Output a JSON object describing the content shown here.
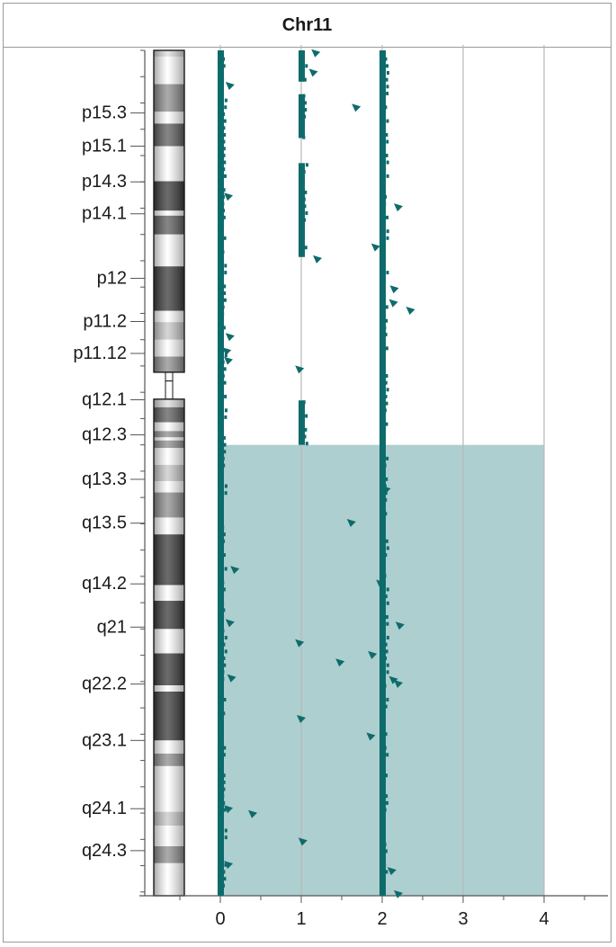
{
  "chart_data": {
    "type": "scatter",
    "title": "Chr11",
    "xlabel": "",
    "ylabel": "",
    "xlim": [
      -0.8,
      4.8
    ],
    "x_ticks": [
      "0",
      "1",
      "2",
      "3",
      "4"
    ],
    "grid": true,
    "legend": "none",
    "chromosome_unit": "Mb",
    "ylim_mb": [
      0,
      135
    ],
    "band_labels": [
      {
        "name": "p15.3",
        "mb": 10.0
      },
      {
        "name": "p15.1",
        "mb": 15.3
      },
      {
        "name": "p14.3",
        "mb": 21.0
      },
      {
        "name": "p14.1",
        "mb": 26.1
      },
      {
        "name": "p12",
        "mb": 36.4
      },
      {
        "name": "p11.2",
        "mb": 43.3
      },
      {
        "name": "p11.12",
        "mb": 48.4
      },
      {
        "name": "q12.1",
        "mb": 55.8
      },
      {
        "name": "q12.3",
        "mb": 61.4
      },
      {
        "name": "q13.3",
        "mb": 68.5
      },
      {
        "name": "q13.5",
        "mb": 75.5
      },
      {
        "name": "q14.2",
        "mb": 85.2
      },
      {
        "name": "q21",
        "mb": 92.1
      },
      {
        "name": "q22.2",
        "mb": 101.2
      },
      {
        "name": "q23.1",
        "mb": 110.2
      },
      {
        "name": "q24.1",
        "mb": 121.1
      },
      {
        "name": "q24.3",
        "mb": 127.8
      }
    ],
    "ideogram_bands": [
      {
        "start": 0.0,
        "end": 1.0,
        "stain": "gvar"
      },
      {
        "start": 1.0,
        "end": 5.4,
        "stain": "gneg"
      },
      {
        "start": 5.4,
        "end": 9.8,
        "stain": "gpos50"
      },
      {
        "start": 9.8,
        "end": 11.7,
        "stain": "gneg"
      },
      {
        "start": 11.7,
        "end": 15.3,
        "stain": "gpos75"
      },
      {
        "start": 15.3,
        "end": 20.9,
        "stain": "gneg"
      },
      {
        "start": 20.9,
        "end": 25.6,
        "stain": "gpos100"
      },
      {
        "start": 25.6,
        "end": 26.4,
        "stain": "gneg"
      },
      {
        "start": 26.4,
        "end": 29.4,
        "stain": "gpos75"
      },
      {
        "start": 29.4,
        "end": 34.5,
        "stain": "gneg"
      },
      {
        "start": 34.5,
        "end": 41.6,
        "stain": "gpos100"
      },
      {
        "start": 41.6,
        "end": 43.4,
        "stain": "gneg"
      },
      {
        "start": 43.4,
        "end": 46.2,
        "stain": "gpos25"
      },
      {
        "start": 46.2,
        "end": 48.9,
        "stain": "gneg"
      },
      {
        "start": 48.9,
        "end": 51.4,
        "stain": "gpos50"
      },
      {
        "start": 51.4,
        "end": 52.8,
        "stain": "acen"
      },
      {
        "start": 52.8,
        "end": 55.7,
        "stain": "stalk"
      },
      {
        "start": 55.7,
        "end": 57.0,
        "stain": "gvar"
      },
      {
        "start": 57.0,
        "end": 59.4,
        "stain": "gpos75"
      },
      {
        "start": 59.4,
        "end": 60.8,
        "stain": "gneg"
      },
      {
        "start": 60.8,
        "end": 61.8,
        "stain": "gpos50"
      },
      {
        "start": 61.8,
        "end": 62.3,
        "stain": "gneg"
      },
      {
        "start": 62.3,
        "end": 63.5,
        "stain": "gpos50"
      },
      {
        "start": 63.5,
        "end": 66.2,
        "stain": "gneg"
      },
      {
        "start": 66.2,
        "end": 68.8,
        "stain": "gpos25"
      },
      {
        "start": 68.8,
        "end": 70.6,
        "stain": "gneg"
      },
      {
        "start": 70.6,
        "end": 74.6,
        "stain": "gpos50"
      },
      {
        "start": 74.6,
        "end": 77.3,
        "stain": "gneg"
      },
      {
        "start": 77.3,
        "end": 85.4,
        "stain": "gpos100"
      },
      {
        "start": 85.4,
        "end": 87.9,
        "stain": "gneg"
      },
      {
        "start": 87.9,
        "end": 92.4,
        "stain": "gpos100"
      },
      {
        "start": 92.4,
        "end": 96.3,
        "stain": "gneg"
      },
      {
        "start": 96.3,
        "end": 101.4,
        "stain": "gpos100"
      },
      {
        "start": 101.4,
        "end": 102.4,
        "stain": "gneg"
      },
      {
        "start": 102.4,
        "end": 110.2,
        "stain": "gpos100"
      },
      {
        "start": 110.2,
        "end": 112.3,
        "stain": "gneg"
      },
      {
        "start": 112.3,
        "end": 114.3,
        "stain": "gpos50"
      },
      {
        "start": 114.3,
        "end": 121.6,
        "stain": "gneg"
      },
      {
        "start": 121.6,
        "end": 123.8,
        "stain": "gpos25"
      },
      {
        "start": 123.8,
        "end": 127.1,
        "stain": "gneg"
      },
      {
        "start": 127.1,
        "end": 129.8,
        "stain": "gpos50"
      },
      {
        "start": 129.8,
        "end": 135.0,
        "stain": "gneg"
      }
    ],
    "highlight_region": {
      "start_mb": 63.0,
      "end_mb": 135.0,
      "x_from": 0,
      "x_to": 4,
      "color": "#aecfcf"
    },
    "series": [
      {
        "values_description": "copy number per marker",
        "color": "#0e6b6b",
        "tracks": [
          {
            "x": 0,
            "start_mb": 0,
            "end_mb": 135
          },
          {
            "x": 1,
            "start_mb": 0,
            "end_mb": 14,
            "gaps": [
              [
                5,
                7
              ]
            ]
          },
          {
            "x": 1,
            "start_mb": 18,
            "end_mb": 33
          },
          {
            "x": 1,
            "start_mb": 55.9,
            "end_mb": 63.0
          },
          {
            "x": 2,
            "start_mb": 0,
            "end_mb": 135
          }
        ],
        "outliers": [
          {
            "x": 1.18,
            "mb": 0.4
          },
          {
            "x": 1.15,
            "mb": 3.5
          },
          {
            "x": 0.12,
            "mb": 5.6
          },
          {
            "x": 1.68,
            "mb": 9.1
          },
          {
            "x": 0.1,
            "mb": 23.3
          },
          {
            "x": 2.2,
            "mb": 25.0
          },
          {
            "x": 1.92,
            "mb": 31.4
          },
          {
            "x": 1.2,
            "mb": 33.3
          },
          {
            "x": 2.15,
            "mb": 38.1
          },
          {
            "x": 2.14,
            "mb": 40.3
          },
          {
            "x": 2.35,
            "mb": 41.5
          },
          {
            "x": 0.12,
            "mb": 45.7
          },
          {
            "x": 0.08,
            "mb": 48.0
          },
          {
            "x": 0.1,
            "mb": 49.5
          },
          {
            "x": 0.98,
            "mb": 50.9
          },
          {
            "x": 2.05,
            "mb": 70.1
          },
          {
            "x": 1.62,
            "mb": 75.4
          },
          {
            "x": 0.18,
            "mb": 82.9
          },
          {
            "x": 1.98,
            "mb": 85.1
          },
          {
            "x": 0.12,
            "mb": 91.4
          },
          {
            "x": 2.22,
            "mb": 91.8
          },
          {
            "x": 0.98,
            "mb": 94.6
          },
          {
            "x": 1.88,
            "mb": 96.5
          },
          {
            "x": 1.48,
            "mb": 97.7
          },
          {
            "x": 0.14,
            "mb": 100.2
          },
          {
            "x": 2.14,
            "mb": 100.5
          },
          {
            "x": 2.2,
            "mb": 101.1
          },
          {
            "x": 1.0,
            "mb": 106.7
          },
          {
            "x": 1.86,
            "mb": 109.5
          },
          {
            "x": 0.1,
            "mb": 121.1
          },
          {
            "x": 0.4,
            "mb": 121.9
          },
          {
            "x": 1.02,
            "mb": 126.3
          },
          {
            "x": 0.1,
            "mb": 130.0
          },
          {
            "x": 2.12,
            "mb": 131.0
          },
          {
            "x": 2.2,
            "mb": 134.7
          }
        ]
      }
    ]
  }
}
